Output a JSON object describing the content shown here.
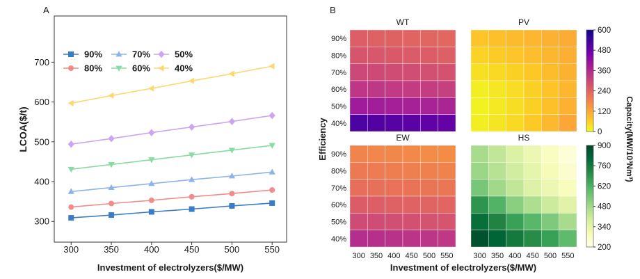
{
  "chart_data": [
    {
      "panel_label": "A",
      "type": "line",
      "xlabel": "Investment of electrolyzers($/MW)",
      "ylabel": "LCOA($/t)",
      "x": [
        300,
        350,
        400,
        450,
        500,
        550
      ],
      "xlim": [
        279,
        568
      ],
      "ylim": [
        248,
        816
      ],
      "yticks": [
        300,
        400,
        500,
        600,
        700
      ],
      "grid": false,
      "legend": {
        "position": "top-left"
      },
      "series": [
        {
          "name": "90%",
          "color": "#3b7dc4",
          "marker": "square",
          "values": [
            309,
            316,
            324,
            331,
            339,
            346
          ]
        },
        {
          "name": "80%",
          "color": "#f28b8b",
          "marker": "circle",
          "values": [
            336,
            345,
            353,
            362,
            370,
            379
          ]
        },
        {
          "name": "70%",
          "color": "#8db4e8",
          "marker": "triangle-up",
          "values": [
            375,
            385,
            395,
            405,
            414,
            424
          ]
        },
        {
          "name": "60%",
          "color": "#86dca2",
          "marker": "triangle-down",
          "values": [
            431,
            443,
            455,
            467,
            479,
            491
          ]
        },
        {
          "name": "50%",
          "color": "#cba5ee",
          "marker": "diamond",
          "values": [
            494,
            508,
            523,
            537,
            551,
            566
          ]
        },
        {
          "name": "40%",
          "color": "#fdd770",
          "marker": "triangle-left",
          "values": [
            597,
            616,
            634,
            653,
            671,
            690
          ]
        }
      ]
    },
    {
      "panel_label": "B",
      "type": "heatmap",
      "xlabel": "Investment of electrolyzers($/MW)",
      "ylabel": "Efficiency",
      "x": [
        "300",
        "350",
        "400",
        "450",
        "500",
        "550"
      ],
      "y": [
        "90%",
        "80%",
        "70%",
        "60%",
        "50%",
        "40%"
      ],
      "colorbar_label": "Capacity(MW/10³Nm³)",
      "colorbars": [
        {
          "range": [
            0,
            600
          ],
          "ticks": [
            600,
            480,
            360,
            240,
            120,
            0
          ],
          "colormap": [
            "#f0f921",
            "#fdca26",
            "#fb9f3a",
            "#ed7953",
            "#d8576b",
            "#bd3786",
            "#9c179e",
            "#7201a8",
            "#46039f",
            "#0d0887"
          ]
        },
        {
          "range": [
            200,
            900
          ],
          "ticks": [
            900,
            760,
            620,
            480,
            340,
            200
          ],
          "colormap": [
            "#ffffe5",
            "#f7fcb9",
            "#d9f0a3",
            "#addd8e",
            "#78c679",
            "#41ab5d",
            "#238443",
            "#006837",
            "#004529"
          ]
        }
      ],
      "subplots": [
        {
          "title": "WT",
          "colorbar": 0,
          "values": [
            [
              252,
              248,
              245,
              241,
              238,
              234
            ],
            [
              270,
              266,
              262,
              258,
              254,
              250
            ],
            [
              298,
              294,
              290,
              286,
              282,
              278
            ],
            [
              334,
              330,
              326,
              322,
              318,
              314
            ],
            [
              392,
              388,
              383,
              379,
              375,
              371
            ],
            [
              522,
              515,
              508,
              501,
              494,
              487
            ]
          ]
        },
        {
          "title": "PV",
          "colorbar": 0,
          "values": [
            [
              75,
              82,
              90,
              98,
              106,
              114
            ],
            [
              55,
              65,
              75,
              86,
              97,
              108
            ],
            [
              35,
              45,
              58,
              72,
              88,
              104
            ],
            [
              15,
              25,
              40,
              58,
              78,
              98
            ],
            [
              10,
              22,
              38,
              58,
              82,
              106
            ],
            [
              15,
              28,
              46,
              68,
              94,
              122
            ]
          ]
        },
        {
          "title": "EW",
          "colorbar": 0,
          "values": [
            [
              182,
              178,
              175,
              172,
              169,
              166
            ],
            [
              200,
              196,
              193,
              190,
              187,
              184
            ],
            [
              222,
              218,
              214,
              211,
              208,
              205
            ],
            [
              256,
              252,
              248,
              244,
              241,
              238
            ],
            [
              292,
              288,
              284,
              280,
              276,
              272
            ],
            [
              352,
              347,
              343,
              339,
              335,
              331
            ]
          ]
        },
        {
          "title": "HS",
          "colorbar": 1,
          "values": [
            [
              470,
              420,
              370,
              320,
              270,
              225
            ],
            [
              490,
              440,
              390,
              340,
              290,
              245
            ],
            [
              550,
              480,
              420,
              360,
              320,
              280
            ],
            [
              690,
              610,
              520,
              460,
              400,
              350
            ],
            [
              790,
              730,
              660,
              600,
              540,
              470
            ],
            [
              870,
              820,
              760,
              710,
              660,
              590
            ]
          ]
        }
      ]
    }
  ]
}
